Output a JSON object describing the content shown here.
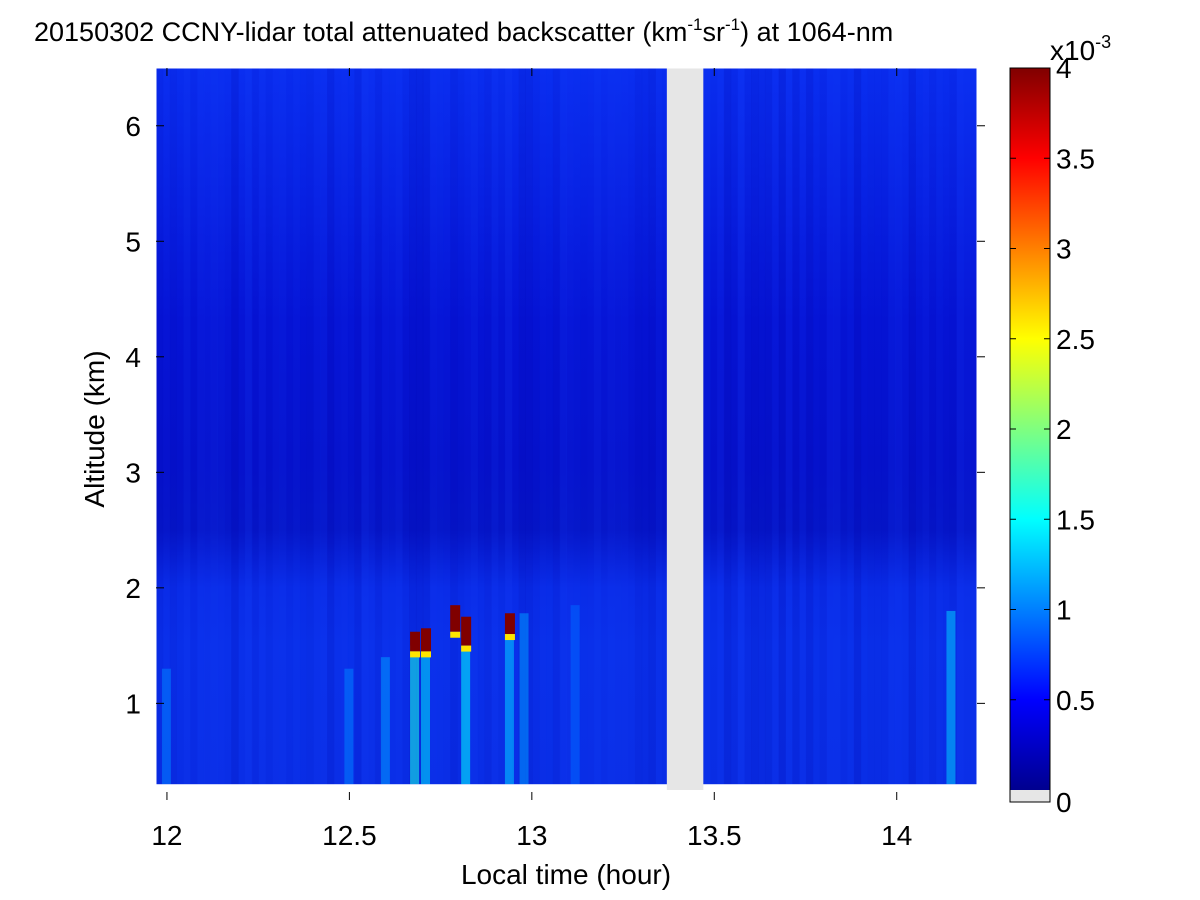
{
  "chart_data": {
    "type": "heatmap",
    "title": {
      "prefix": "20150302 CCNY-lidar total attenuated backscatter (km",
      "sup1": "-1",
      "mid": "sr",
      "sup2": "-1",
      "suffix": ") at 1064-nm"
    },
    "xlabel": "Local time (hour)",
    "ylabel": "Altitude (km)",
    "xlim": [
      11.97,
      14.22
    ],
    "ylim": [
      0.25,
      6.5
    ],
    "xticks": [
      12,
      12.5,
      13,
      13.5,
      14
    ],
    "xtick_labels": [
      "12",
      "12.5",
      "13",
      "13.5",
      "14"
    ],
    "yticks": [
      1,
      2,
      3,
      4,
      5,
      6
    ],
    "ytick_labels": [
      "1",
      "2",
      "3",
      "4",
      "5",
      "6"
    ],
    "colorbar": {
      "exponent": {
        "base": "x10",
        "power": "-3"
      },
      "ticks": [
        0,
        0.5,
        1,
        1.5,
        2,
        2.5,
        3,
        3.5,
        4
      ],
      "tick_labels": [
        "0",
        "0.5",
        "1",
        "1.5",
        "2",
        "2.5",
        "3",
        "3.5",
        "4"
      ],
      "range": [
        0,
        4
      ],
      "colormap": "jet",
      "nodata_color": "#e6e6e6"
    },
    "no_data_gaps": [
      {
        "x_start": 13.37,
        "x_end": 13.47
      }
    ],
    "profile": {
      "base_km": 0.3,
      "pbl_top_km": 2.0,
      "values_by_altitude": [
        {
          "alt": 0.3,
          "value": 0.65
        },
        {
          "alt": 1.0,
          "value": 0.6
        },
        {
          "alt": 1.4,
          "value": 0.55
        },
        {
          "alt": 1.7,
          "value": 0.5
        },
        {
          "alt": 2.0,
          "value": 0.38
        },
        {
          "alt": 2.3,
          "value": 0.12
        },
        {
          "alt": 3.0,
          "value": 0.22
        },
        {
          "alt": 4.0,
          "value": 0.2
        },
        {
          "alt": 5.0,
          "value": 0.3
        },
        {
          "alt": 6.5,
          "value": 0.36
        }
      ]
    },
    "cloud_cells": [
      {
        "t": 12.68,
        "alt_bottom": 1.45,
        "alt_top": 1.62,
        "value": 4.0
      },
      {
        "t": 12.71,
        "alt_bottom": 1.45,
        "alt_top": 1.65,
        "value": 4.0
      },
      {
        "t": 12.79,
        "alt_bottom": 1.62,
        "alt_top": 1.85,
        "value": 4.0
      },
      {
        "t": 12.82,
        "alt_bottom": 1.5,
        "alt_top": 1.75,
        "value": 4.0
      },
      {
        "t": 12.94,
        "alt_bottom": 1.6,
        "alt_top": 1.78,
        "value": 4.0
      }
    ],
    "aerosol_plumes": [
      {
        "t": 12.0,
        "alt_top": 1.3,
        "value": 1.0
      },
      {
        "t": 12.5,
        "alt_top": 1.3,
        "value": 1.0
      },
      {
        "t": 12.6,
        "alt_top": 1.4,
        "value": 1.1
      },
      {
        "t": 12.68,
        "alt_top": 1.5,
        "value": 1.6
      },
      {
        "t": 12.71,
        "alt_top": 1.45,
        "value": 1.4
      },
      {
        "t": 12.82,
        "alt_top": 1.5,
        "value": 1.5
      },
      {
        "t": 12.94,
        "alt_top": 1.6,
        "value": 1.3
      },
      {
        "t": 12.98,
        "alt_top": 1.78,
        "value": 1.1
      },
      {
        "t": 13.12,
        "alt_top": 1.85,
        "value": 0.9
      },
      {
        "t": 14.15,
        "alt_top": 1.8,
        "value": 1.3
      }
    ]
  }
}
